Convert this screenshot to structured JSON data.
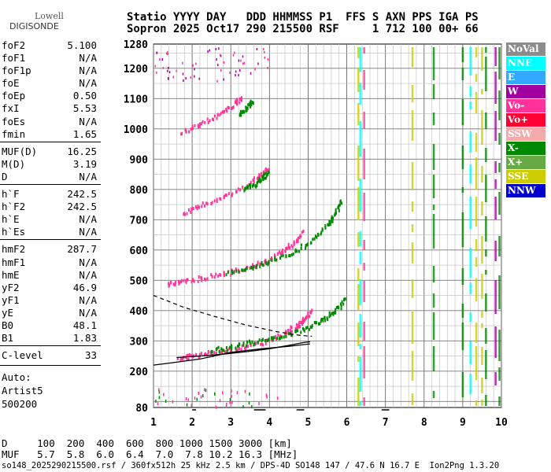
{
  "logo": {
    "line1": "Lowell",
    "line2": "DIGISONDE"
  },
  "header": {
    "line1": "Statio YYYY DAY   DDD HHMMSS P1  FFS S AXN PPS IGA PS",
    "line2": "Sopron 2025 Oct17 290 215500 RSF     1 712 100 00+ 66"
  },
  "params": [
    {
      "label": "foF2",
      "value": "5.100"
    },
    {
      "label": "foF1",
      "value": "N/A"
    },
    {
      "label": "foF1p",
      "value": "N/A"
    },
    {
      "label": "foE",
      "value": "N/A"
    },
    {
      "label": "foEp",
      "value": "0.50"
    },
    {
      "label": "fxI",
      "value": "5.53"
    },
    {
      "label": "foEs",
      "value": "N/A"
    },
    {
      "label": "fmin",
      "value": "1.65"
    },
    {
      "label": "MUF(D)",
      "value": "16.25"
    },
    {
      "label": "M(D)",
      "value": "3.19"
    },
    {
      "label": "D",
      "value": "N/A"
    },
    {
      "label": "h`F",
      "value": "242.5"
    },
    {
      "label": "h`F2",
      "value": "242.5"
    },
    {
      "label": "h`E",
      "value": "N/A"
    },
    {
      "label": "h`Es",
      "value": "N/A"
    },
    {
      "label": "hmF2",
      "value": "287.7"
    },
    {
      "label": "hmF1",
      "value": "N/A"
    },
    {
      "label": "hmE",
      "value": "N/A"
    },
    {
      "label": "yF2",
      "value": "46.9"
    },
    {
      "label": "yF1",
      "value": "N/A"
    },
    {
      "label": "yE",
      "value": "N/A"
    },
    {
      "label": "B0",
      "value": "48.1"
    },
    {
      "label": "B1",
      "value": "1.83"
    },
    {
      "label": "C-level",
      "value": "33"
    }
  ],
  "auto": {
    "line1": "Auto:",
    "line2": "Artist5",
    "line3": "500200"
  },
  "legend": [
    {
      "label": "NoVal",
      "color": "#8c8c8c"
    },
    {
      "label": "NNE",
      "color": "#00ffff"
    },
    {
      "label": "E",
      "color": "#33aaff"
    },
    {
      "label": "W",
      "color": "#a000a0"
    },
    {
      "label": "Vo-",
      "color": "#ff3399"
    },
    {
      "label": "Vo+",
      "color": "#ff0033"
    },
    {
      "label": "SSW",
      "color": "#f4aaaa"
    },
    {
      "label": "X-",
      "color": "#008800"
    },
    {
      "label": "X+",
      "color": "#66aa44"
    },
    {
      "label": "SSE",
      "color": "#cccc00"
    },
    {
      "label": "NNW",
      "color": "#0000cc"
    }
  ],
  "chart_data": {
    "type": "scatter",
    "title": "",
    "xlabel": "",
    "ylabel": "",
    "x_ticks": [
      "1",
      "2",
      "3",
      "4",
      "5",
      "6",
      "7",
      "8",
      "9",
      "10"
    ],
    "y_ticks": [
      "80",
      "200",
      "300",
      "400",
      "500",
      "600",
      "700",
      "800",
      "900",
      "1000",
      "1100",
      "1200",
      "1280"
    ],
    "xlim": [
      1,
      10
    ],
    "ylim": [
      80,
      1280
    ],
    "grid": true,
    "series": [
      {
        "name": "Vo-",
        "color": "#ff3399",
        "points": [
          [
            1.65,
            242
          ],
          [
            2.0,
            248
          ],
          [
            2.5,
            258
          ],
          [
            3.0,
            268
          ],
          [
            3.5,
            282
          ],
          [
            4.0,
            300
          ],
          [
            4.4,
            325
          ],
          [
            4.7,
            350
          ],
          [
            4.9,
            370
          ],
          [
            5.05,
            395
          ]
        ]
      },
      {
        "name": "Vo-",
        "color": "#ff3399",
        "points": [
          [
            1.35,
            482
          ],
          [
            1.7,
            492
          ],
          [
            2.2,
            505
          ],
          [
            2.8,
            520
          ],
          [
            3.4,
            537
          ],
          [
            3.9,
            560
          ],
          [
            4.3,
            590
          ],
          [
            4.6,
            620
          ],
          [
            4.85,
            660
          ]
        ]
      },
      {
        "name": "Vo-",
        "color": "#ff3399",
        "points": [
          [
            1.75,
            720
          ],
          [
            2.2,
            745
          ],
          [
            2.8,
            775
          ],
          [
            3.4,
            810
          ],
          [
            3.75,
            845
          ],
          [
            3.95,
            870
          ]
        ]
      },
      {
        "name": "Vo-",
        "color": "#ff3399",
        "points": [
          [
            1.7,
            985
          ],
          [
            2.2,
            1015
          ],
          [
            2.7,
            1045
          ],
          [
            3.1,
            1080
          ],
          [
            3.25,
            1100
          ]
        ]
      },
      {
        "name": "X-",
        "color": "#008800",
        "points": [
          [
            2.5,
            268
          ],
          [
            3.0,
            278
          ],
          [
            3.5,
            292
          ],
          [
            4.0,
            305
          ],
          [
            4.5,
            320
          ],
          [
            5.0,
            345
          ],
          [
            5.4,
            370
          ],
          [
            5.7,
            400
          ],
          [
            5.95,
            435
          ]
        ]
      },
      {
        "name": "X-",
        "color": "#008800",
        "points": [
          [
            2.9,
            522
          ],
          [
            3.5,
            540
          ],
          [
            4.0,
            560
          ],
          [
            4.6,
            590
          ],
          [
            5.1,
            630
          ],
          [
            5.5,
            680
          ],
          [
            5.7,
            720
          ],
          [
            5.85,
            760
          ]
        ]
      },
      {
        "name": "X-",
        "color": "#008800",
        "points": [
          [
            3.3,
            800
          ],
          [
            3.6,
            815
          ],
          [
            3.8,
            835
          ],
          [
            3.95,
            855
          ]
        ]
      },
      {
        "name": "X-",
        "color": "#008800",
        "points": [
          [
            3.2,
            1050
          ],
          [
            3.4,
            1070
          ],
          [
            3.55,
            1090
          ]
        ]
      }
    ],
    "profile_lines": {
      "solid_upper": [
        [
          1.6,
          245
        ],
        [
          2.2,
          250
        ],
        [
          2.8,
          256
        ],
        [
          3.4,
          264
        ],
        [
          4.0,
          274
        ],
        [
          4.5,
          285
        ],
        [
          4.9,
          295
        ],
        [
          5.05,
          297
        ]
      ],
      "solid_lower": [
        [
          5.05,
          290
        ],
        [
          4.5,
          282
        ],
        [
          3.8,
          274
        ],
        [
          3.0,
          262
        ],
        [
          2.2,
          240
        ],
        [
          1.5,
          228
        ],
        [
          1.0,
          220
        ]
      ],
      "dashed": [
        [
          1.0,
          450
        ],
        [
          1.8,
          410
        ],
        [
          2.6,
          380
        ],
        [
          3.4,
          352
        ],
        [
          4.2,
          330
        ],
        [
          4.8,
          318
        ],
        [
          5.1,
          315
        ]
      ]
    }
  },
  "distance_table": {
    "d_row": "D     100  200  400  600  800 1000 1500 3000 [km]",
    "muf_row": "MUF   5.7  5.8  6.0  6.4  7.0  7.8 10.2 16.3 [MHz]"
  },
  "footer": "so148_2025290215500.rsf / 360fx512h 25 kHz 2.5 km / DPS-4D SO148 147 / 47.6 N 16.7 E  Ion2Png 1.3.20"
}
